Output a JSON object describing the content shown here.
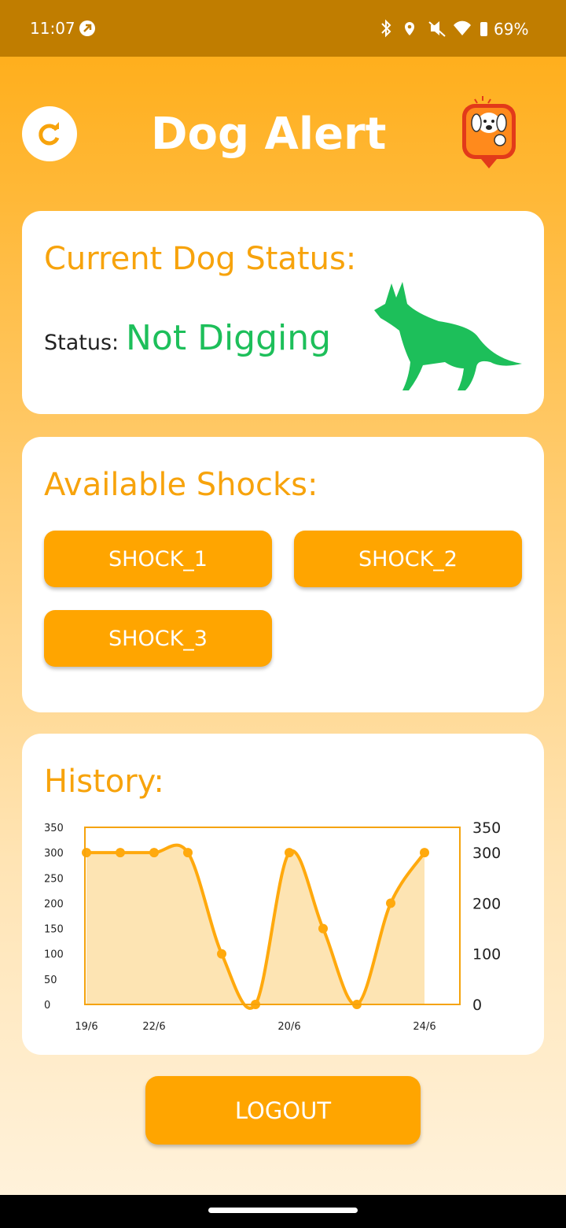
{
  "status_bar": {
    "time": "11:07",
    "battery": "69%"
  },
  "header": {
    "title": "Dog Alert"
  },
  "status_card": {
    "title": "Current Dog Status:",
    "label": "Status:",
    "value": "Not Digging"
  },
  "shocks_card": {
    "title": "Available Shocks:",
    "buttons": [
      "SHOCK_1",
      "SHOCK_2",
      "SHOCK_3"
    ]
  },
  "history": {
    "title": "History:",
    "chart_data": {
      "type": "line",
      "categories": [
        "19/6",
        null,
        "22/6",
        null,
        null,
        null,
        "20/6",
        null,
        null,
        null,
        "24/6"
      ],
      "series": [
        {
          "name": null,
          "color": "#ffa90d",
          "values": [
            300,
            300,
            300,
            300,
            100,
            0,
            300,
            150,
            0,
            200,
            300
          ]
        }
      ],
      "ylim": [
        0,
        350
      ],
      "yticks": [
        0,
        50,
        100,
        150,
        200,
        250,
        300,
        350
      ],
      "y2lim": [
        0,
        350
      ],
      "y2ticks": [
        0,
        100,
        200,
        300,
        350
      ]
    }
  },
  "logout": "LOGOUT"
}
